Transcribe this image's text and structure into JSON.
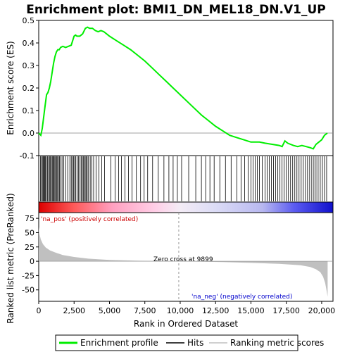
{
  "chart_data": {
    "type": "line",
    "title": "Enrichment plot: BMI1_DN_MEL18_DN.V1_UP",
    "es_panel": {
      "ylabel": "Enrichment score (ES)",
      "ylim": [
        -0.1,
        0.5
      ],
      "yticks": [
        "0.5",
        "0.4",
        "0.3",
        "0.2",
        "0.1",
        "0.0",
        "-0.1"
      ],
      "ytick_values": [
        0.5,
        0.4,
        0.3,
        0.2,
        0.1,
        0.0,
        -0.1
      ],
      "series": [
        {
          "name": "Enrichment profile",
          "color": "#00ee00",
          "x": [
            0,
            150,
            250,
            350,
            450,
            550,
            650,
            750,
            850,
            950,
            1050,
            1150,
            1250,
            1350,
            1450,
            1550,
            1700,
            1900,
            2100,
            2300,
            2500,
            2600,
            2700,
            2900,
            3100,
            3300,
            3450,
            3600,
            3800,
            4000,
            4200,
            4400,
            4600,
            4800,
            5000,
            5500,
            6000,
            6500,
            7000,
            7500,
            8000,
            8500,
            9000,
            9500,
            10000,
            10500,
            11000,
            11500,
            12000,
            12500,
            13000,
            13500,
            14000,
            14500,
            15000,
            15300,
            15600,
            16000,
            16500,
            17000,
            17200,
            17400,
            17600,
            17800,
            18000,
            18300,
            18600,
            18900,
            19200,
            19400,
            19600,
            19800,
            20000,
            20200,
            20400
          ],
          "y": [
            0.0,
            -0.01,
            0.02,
            0.07,
            0.12,
            0.17,
            0.18,
            0.2,
            0.23,
            0.27,
            0.31,
            0.34,
            0.36,
            0.37,
            0.37,
            0.38,
            0.385,
            0.38,
            0.385,
            0.39,
            0.43,
            0.435,
            0.43,
            0.43,
            0.44,
            0.465,
            0.47,
            0.465,
            0.465,
            0.455,
            0.45,
            0.455,
            0.45,
            0.44,
            0.43,
            0.41,
            0.39,
            0.37,
            0.345,
            0.32,
            0.29,
            0.26,
            0.23,
            0.2,
            0.17,
            0.14,
            0.11,
            0.08,
            0.055,
            0.03,
            0.01,
            -0.01,
            -0.02,
            -0.03,
            -0.04,
            -0.04,
            -0.04,
            -0.045,
            -0.05,
            -0.055,
            -0.06,
            -0.035,
            -0.045,
            -0.05,
            -0.055,
            -0.06,
            -0.055,
            -0.06,
            -0.065,
            -0.07,
            -0.05,
            -0.04,
            -0.03,
            -0.01,
            0.0
          ]
        }
      ]
    },
    "hits_panel": {
      "legend_name": "Hits",
      "hit_positions": [
        120,
        200,
        260,
        330,
        380,
        430,
        480,
        540,
        620,
        700,
        760,
        820,
        900,
        960,
        1020,
        1080,
        1140,
        1200,
        1260,
        1330,
        1400,
        1470,
        1550,
        1650,
        1760,
        1900,
        2050,
        2200,
        2300,
        2380,
        2460,
        2540,
        2620,
        2720,
        2820,
        2920,
        3000,
        3080,
        3150,
        3220,
        3290,
        3360,
        3430,
        3520,
        3640,
        3760,
        3880,
        4050,
        4250,
        4450,
        4650,
        5100,
        5400,
        5650,
        5850,
        6100,
        6350,
        6600,
        6900,
        7200,
        7450,
        7700,
        8050,
        8450,
        8850,
        9200,
        9500,
        9800,
        10100,
        10600,
        11100,
        11500,
        11800,
        12100,
        12400,
        12800,
        13200,
        13600,
        14000,
        14300,
        14550,
        14800,
        15000,
        15150,
        15300,
        15450,
        15600,
        15800,
        16000,
        16150,
        16300,
        16450,
        16600,
        16750,
        16900,
        17050,
        17200,
        17350,
        17500,
        17650,
        17800,
        17950,
        18100,
        18250,
        18400,
        18550,
        18700,
        18850,
        19000,
        19150,
        19300,
        19450,
        19600,
        19750,
        19900,
        20050,
        20200,
        20350
      ]
    },
    "rank_panel": {
      "legend_name": "Ranking metric scores",
      "ylabel": "Ranked list metric (PreRanked)",
      "xlabel": "Rank in Ordered Dataset",
      "ylim": [
        -70,
        85
      ],
      "yticks": [
        "75",
        "50",
        "25",
        "0",
        "-25",
        "-50"
      ],
      "ytick_values": [
        75,
        50,
        25,
        0,
        -25,
        -50
      ],
      "xlim": [
        0,
        20800
      ],
      "xticks": [
        "0",
        "2,500",
        "5,000",
        "7,500",
        "10,000",
        "12,500",
        "15,000",
        "17,500",
        "20,000"
      ],
      "xtick_values": [
        0,
        2500,
        5000,
        7500,
        10000,
        12500,
        15000,
        17500,
        20000
      ],
      "profile_x": [
        0,
        50,
        150,
        300,
        500,
        800,
        1200,
        1700,
        2500,
        3500,
        5000,
        7000,
        9000,
        9899,
        11000,
        13000,
        15000,
        17000,
        18500,
        19200,
        19600,
        19900,
        20100,
        20250,
        20350,
        20420
      ],
      "profile_y": [
        60,
        48,
        38,
        30,
        24,
        19,
        15,
        11,
        7.5,
        4.5,
        2.2,
        0.8,
        0.2,
        0,
        -0.5,
        -1.5,
        -2.8,
        -4.5,
        -7,
        -10,
        -14,
        -19,
        -27,
        -38,
        -52,
        -62
      ],
      "zero_cross_x": 9899,
      "zero_cross_label": "Zero cross at 9899",
      "pos_label": "'na_pos' (positively correlated)",
      "neg_label": "'na_neg' (negatively correlated)"
    },
    "legend": [
      {
        "label": "Enrichment profile",
        "color": "#00ee00"
      },
      {
        "label": "Hits",
        "color": "#000000"
      },
      {
        "label": "Ranking metric scores",
        "color": "#c0c0c0"
      }
    ],
    "colors": {
      "profile": "#00ee00",
      "hits": "#000000",
      "metric_fill": "#c0c0c0",
      "pos_text": "#cc0000",
      "neg_text": "#0000cc",
      "heat_pos": "#ff0000",
      "heat_neg": "#0000ff"
    }
  }
}
